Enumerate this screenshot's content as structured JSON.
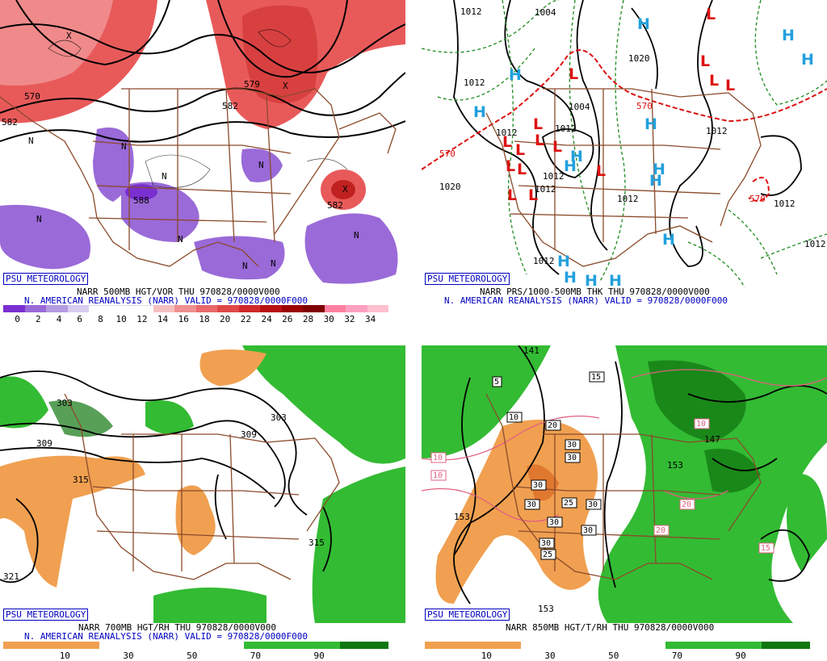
{
  "panels": [
    {
      "id": "p500",
      "caption_title": "NARR 500MB HGT/VOR THU 970828/0000V000",
      "caption_valid": "N. AMERICAN REANALYSIS (NARR) VALID = 970828/0000F000",
      "badge": "PSU METEOROLOGY",
      "contour_labels": [
        "570",
        "579",
        "582",
        "582",
        "582",
        "588",
        "570"
      ],
      "center_marks": [
        "N",
        "N",
        "N",
        "N",
        "N",
        "N",
        "N",
        "N",
        "N",
        "X",
        "X",
        "X"
      ],
      "colorbar_ticks": [
        "0",
        "2",
        "4",
        "6",
        "8",
        "10",
        "12",
        "14",
        "16",
        "18",
        "20",
        "22",
        "24",
        "26",
        "28",
        "30",
        "32",
        "34"
      ],
      "colorbar_colors": [
        "#7a2fd0",
        "#9a6ad8",
        "#b59be0",
        "#d8cdef",
        "#ffffff",
        "#ffffff",
        "#ffffff",
        "#f5c0c0",
        "#ee9090",
        "#e86a6a",
        "#e04848",
        "#d02828",
        "#b81010",
        "#9c0000",
        "#800000",
        "#ff80a0",
        "#ffa0c0",
        "#ffc0d0"
      ]
    },
    {
      "id": "pprs",
      "caption_title": "NARR PRS/1000-500MB THK THU 970828/0000V000",
      "caption_valid": "N. AMERICAN REANALYSIS (NARR) VALID = 970828/0000F000",
      "badge": "PSU METEOROLOGY",
      "isobar_labels": [
        "1012",
        "1004",
        "1020",
        "1012",
        "1004",
        "1012",
        "1012",
        "1012",
        "1020",
        "1012",
        "1012",
        "1012",
        "1012",
        "1012",
        "1012"
      ],
      "thickness_labels": [
        "570",
        "570",
        "570"
      ],
      "highs": [
        "H",
        "H",
        "H",
        "H",
        "H",
        "H",
        "H",
        "H",
        "H",
        "H",
        "H",
        "H",
        "H",
        "H",
        "H"
      ],
      "lows": [
        "L",
        "L",
        "L",
        "L",
        "L",
        "L",
        "L",
        "L",
        "L",
        "L",
        "L",
        "L",
        "L",
        "L",
        "L"
      ]
    },
    {
      "id": "p700",
      "caption_title": "NARR 700MB HGT/RH THU 970828/0000V000",
      "caption_valid": "N. AMERICAN REANALYSIS (NARR) VALID = 970828/0000F000",
      "badge": "PSU METEOROLOGY",
      "contour_labels": [
        "303",
        "309",
        "315",
        "303",
        "309",
        "315",
        "321"
      ],
      "colorbar_ticks": [
        "10",
        "30",
        "50",
        "70",
        "90"
      ]
    },
    {
      "id": "p850",
      "caption_title": "NARR 850MB HGT/T/RH THU 970828/0000V000",
      "caption_valid": "",
      "badge": "PSU METEOROLOGY",
      "contour_labels": [
        "141",
        "153",
        "147",
        "153",
        "153"
      ],
      "temp_labels": [
        "5",
        "15",
        "10",
        "20",
        "30",
        "30",
        "30",
        "30",
        "25",
        "30",
        "30",
        "30",
        "30",
        "25",
        "10",
        "10",
        "10",
        "20",
        "20",
        "15"
      ],
      "colorbar_ticks": [
        "10",
        "30",
        "50",
        "70",
        "90"
      ]
    }
  ],
  "colors": {
    "border": "#8b4a2b",
    "caption_blue": "#0000c0",
    "rh_dry": "#f0a050",
    "rh_wet_light": "#33bb33",
    "rh_wet_dark": "#117711",
    "high": "#22a0dd",
    "low": "#dd1111"
  }
}
